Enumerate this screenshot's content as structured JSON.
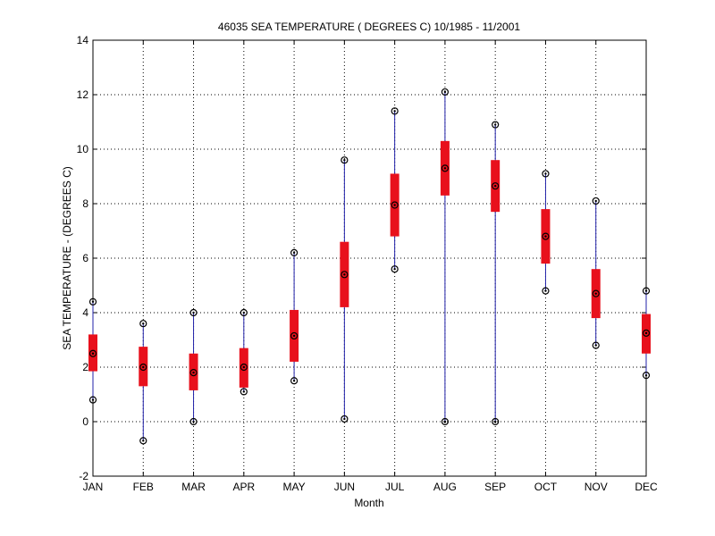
{
  "chart_data": {
    "type": "box",
    "title": "46035  SEA TEMPERATURE ( DEGREES C) 10/1985 - 11/2001",
    "xlabel": "Month",
    "ylabel": "SEA TEMPERATURE  -  (DEGREES C)",
    "categories": [
      "JAN",
      "FEB",
      "MAR",
      "APR",
      "MAY",
      "JUN",
      "JUL",
      "AUG",
      "SEP",
      "OCT",
      "NOV",
      "DEC"
    ],
    "ylim": [
      -2,
      14
    ],
    "yticks": [
      -2,
      0,
      2,
      4,
      6,
      8,
      10,
      12,
      14
    ],
    "grid": true,
    "stats": [
      {
        "month": "JAN",
        "min": 0.8,
        "q1": 1.85,
        "median": 2.5,
        "q3": 3.2,
        "max": 4.4
      },
      {
        "month": "FEB",
        "min": -0.7,
        "q1": 1.3,
        "median": 2.0,
        "q3": 2.75,
        "max": 3.6
      },
      {
        "month": "MAR",
        "min": 0.0,
        "q1": 1.15,
        "median": 1.8,
        "q3": 2.5,
        "max": 4.0
      },
      {
        "month": "APR",
        "min": 1.1,
        "q1": 1.25,
        "median": 2.0,
        "q3": 2.7,
        "max": 4.0
      },
      {
        "month": "MAY",
        "min": 1.5,
        "q1": 2.2,
        "median": 3.15,
        "q3": 4.1,
        "max": 6.2
      },
      {
        "month": "JUN",
        "min": 0.1,
        "q1": 4.2,
        "median": 5.4,
        "q3": 6.6,
        "max": 9.6
      },
      {
        "month": "JUL",
        "min": 5.6,
        "q1": 6.8,
        "median": 7.95,
        "q3": 9.1,
        "max": 11.4
      },
      {
        "month": "AUG",
        "min": 0.0,
        "q1": 8.3,
        "median": 9.3,
        "q3": 10.3,
        "max": 12.1
      },
      {
        "month": "SEP",
        "min": 0.0,
        "q1": 7.7,
        "median": 8.65,
        "q3": 9.6,
        "max": 10.9
      },
      {
        "month": "OCT",
        "min": 4.8,
        "q1": 5.8,
        "median": 6.8,
        "q3": 7.8,
        "max": 9.1
      },
      {
        "month": "NOV",
        "min": 2.8,
        "q1": 3.8,
        "median": 4.7,
        "q3": 5.6,
        "max": 8.1
      },
      {
        "month": "DEC",
        "min": 1.7,
        "q1": 2.5,
        "median": 3.25,
        "q3": 3.95,
        "max": 4.8
      }
    ],
    "colors": {
      "whisker": "#2222aa",
      "box": "#e8101c",
      "marker": "#000000",
      "grid": "#000000",
      "axis": "#000000"
    }
  }
}
